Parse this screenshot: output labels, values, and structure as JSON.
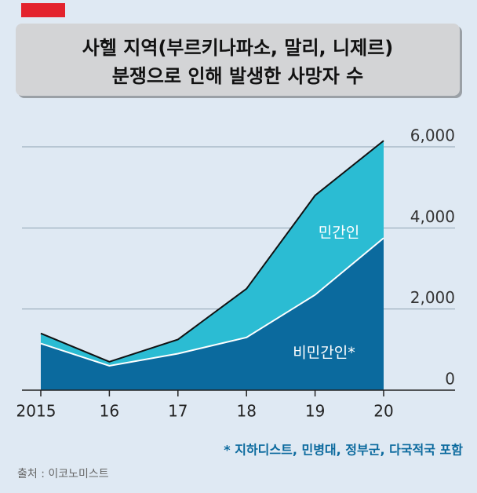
{
  "chart_data": {
    "type": "area",
    "stacked": true,
    "title": [
      "사헬 지역(부르키나파소, 말리, 니제르)",
      "분쟁으로 인해 발생한 사망자 수"
    ],
    "categories": [
      "2015",
      "16",
      "17",
      "18",
      "19",
      "20"
    ],
    "series": [
      {
        "name": "비민간인*",
        "color": "#0b6a9e",
        "values": [
          1150,
          600,
          900,
          1300,
          2350,
          3750
        ]
      },
      {
        "name": "민간인",
        "color": "#2bbcd3",
        "values": [
          250,
          100,
          350,
          1200,
          2450,
          2400
        ]
      }
    ],
    "ylim": [
      0,
      6000
    ],
    "yticks": [
      0,
      {
        "value": 2000,
        "label": "2,000"
      },
      {
        "value": 4000,
        "label": "4,000"
      },
      {
        "value": 6000,
        "label": "6,000"
      }
    ],
    "grid": true,
    "footnote": "* 지하디스트, 민병대, 정부군, 다국적국 포함",
    "source": "출처 : 이코노미스트"
  }
}
